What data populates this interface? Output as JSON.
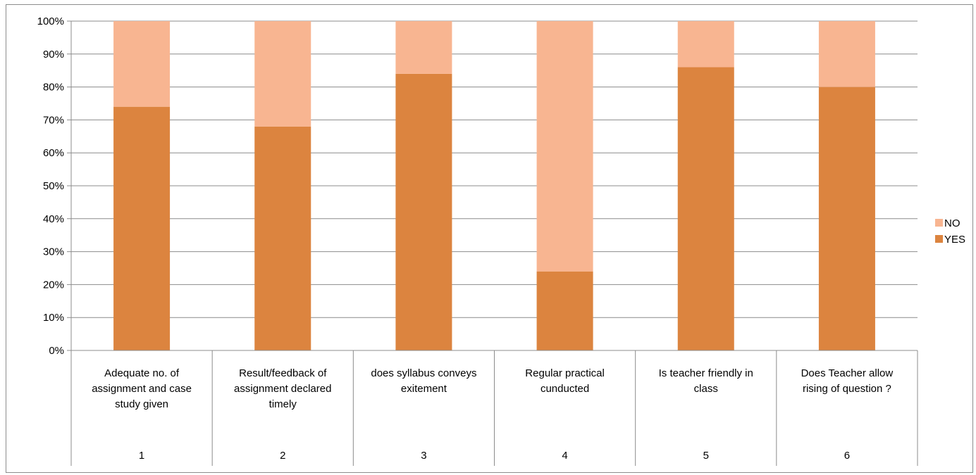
{
  "chart_data": {
    "type": "bar",
    "stacked": true,
    "percent_stacked": true,
    "categories": [
      "Adequate no. of assignment and case study given",
      "Result/feedback of assignment declared timely",
      "does syllabus conveys exitement",
      "Regular practical cunducted",
      "Is teacher friendly in class",
      "Does Teacher allow rising of question ?"
    ],
    "category_lines": [
      [
        "Adequate no. of",
        "assignment and case",
        "study given"
      ],
      [
        "Result/feedback of",
        "assignment declared",
        "timely"
      ],
      [
        "does syllabus conveys",
        "exitement"
      ],
      [
        "Regular practical",
        "cunducted"
      ],
      [
        "Is teacher friendly in",
        "class"
      ],
      [
        "Does Teacher allow",
        "rising of question ?"
      ]
    ],
    "group_labels": [
      "1",
      "2",
      "3",
      "4",
      "5",
      "6"
    ],
    "series": [
      {
        "name": "YES",
        "color": "#dc843f",
        "values": [
          74,
          68,
          84,
          24,
          86,
          80
        ]
      },
      {
        "name": "NO",
        "color": "#f8b591",
        "values": [
          26,
          32,
          16,
          76,
          14,
          20
        ]
      }
    ],
    "ylim": [
      0,
      100
    ],
    "yticks": [
      "0%",
      "10%",
      "20%",
      "30%",
      "40%",
      "50%",
      "60%",
      "70%",
      "80%",
      "90%",
      "100%"
    ],
    "grid": true,
    "legend_position": "right",
    "legend_order": [
      "NO",
      "YES"
    ],
    "title": "",
    "xlabel": "",
    "ylabel": ""
  }
}
